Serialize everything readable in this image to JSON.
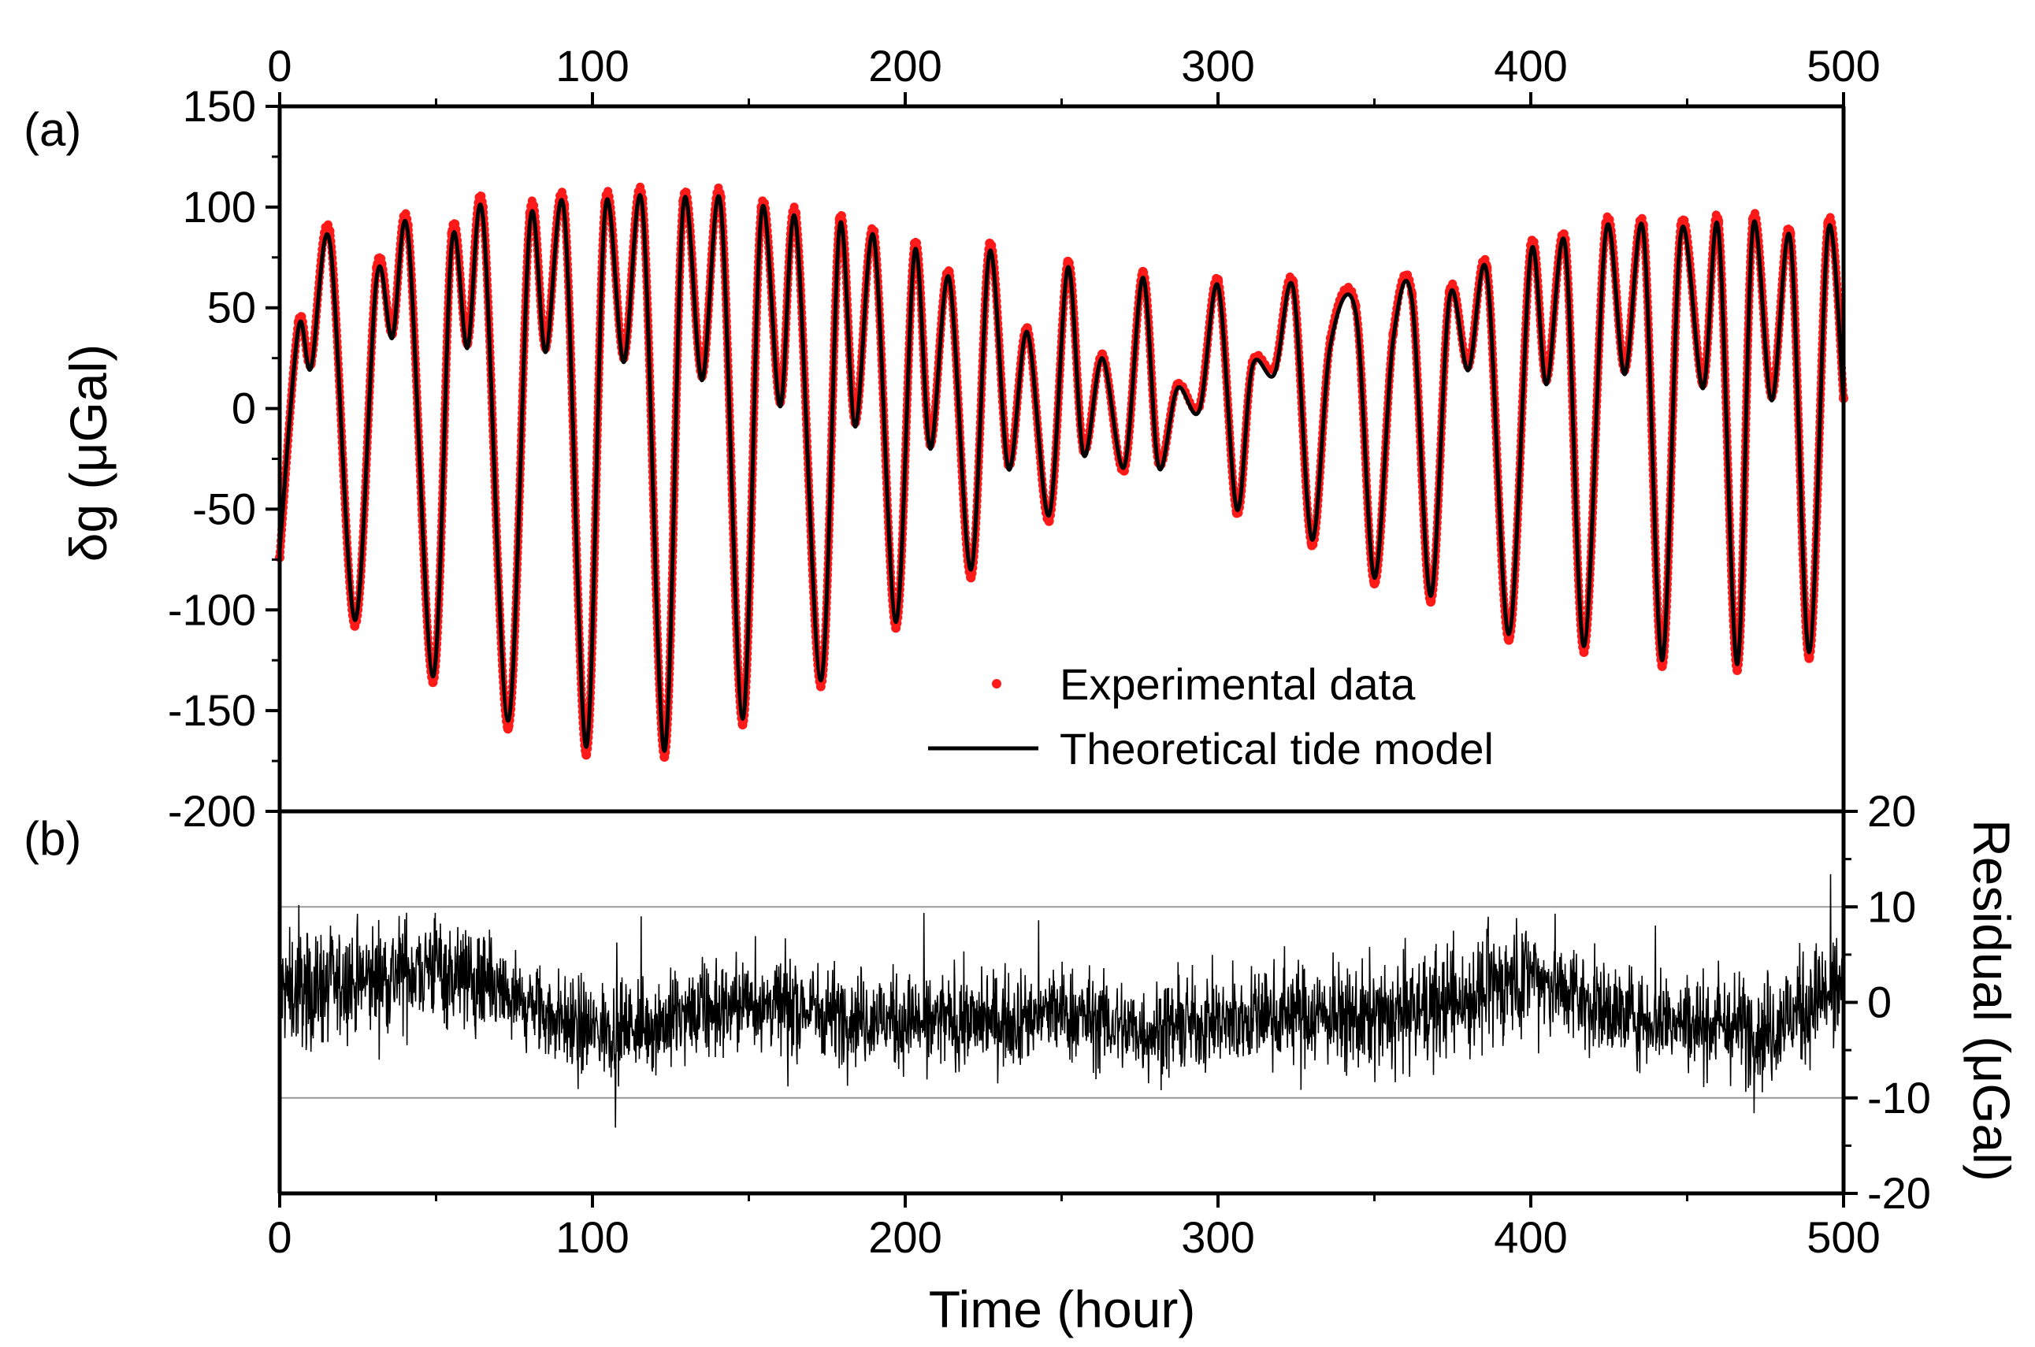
{
  "chart_data": [
    {
      "panel": "(a)",
      "type": "line",
      "title": "",
      "ylabel": "δg (μGal)",
      "xlabel_top": "",
      "ylim": [
        -200,
        150
      ],
      "yticks": [
        -200,
        -150,
        -100,
        -50,
        0,
        50,
        100,
        150
      ],
      "xlim": [
        0,
        500
      ],
      "xticks": [
        0,
        100,
        200,
        300,
        400,
        500
      ],
      "legend_position": "lower-right",
      "series": [
        {
          "name": "Experimental data",
          "style": "red dots",
          "color": "#ff1a1a",
          "x": [
            0,
            6,
            10,
            16,
            24,
            31,
            36,
            41,
            49,
            55,
            60,
            65,
            73,
            80,
            85,
            91,
            98,
            104,
            110,
            116,
            123,
            129,
            135,
            141,
            148,
            154,
            160,
            165,
            173,
            179,
            184,
            190,
            197,
            203,
            208,
            214,
            221,
            227,
            233,
            239,
            246,
            252,
            257,
            263,
            270,
            276,
            281,
            287,
            294,
            300,
            306,
            311,
            318,
            324,
            330,
            336,
            344,
            350,
            356,
            362,
            368,
            374,
            380,
            386,
            393,
            400,
            405,
            411,
            417,
            424,
            430,
            436,
            442,
            448,
            455,
            460,
            466,
            471,
            477,
            483,
            489,
            495,
            500
          ],
          "y": [
            -74,
            43,
            22,
            88,
            -108,
            70,
            37,
            91,
            -136,
            87,
            32,
            100,
            -159,
            97,
            30,
            101,
            -172,
            102,
            25,
            104,
            -173,
            103,
            16,
            105,
            -157,
            100,
            3,
            97,
            -138,
            94,
            -7,
            88,
            -109,
            82,
            -18,
            68,
            -84,
            82,
            -28,
            40,
            -56,
            73,
            -21,
            27,
            -31,
            68,
            -27,
            12,
            1,
            64,
            -52,
            23,
            20,
            63,
            -68,
            35,
            51,
            -87,
            37,
            57,
            -96,
            58,
            21,
            70,
            -115,
            81,
            14,
            84,
            -121,
            92,
            19,
            91,
            -128,
            91,
            12,
            93,
            -130,
            94,
            6,
            87,
            -124,
            92,
            5
          ]
        },
        {
          "name": "Theoretical tide model",
          "style": "black line",
          "color": "#000000",
          "x": [
            0,
            6,
            10,
            16,
            24,
            31,
            36,
            41,
            49,
            55,
            60,
            65,
            73,
            80,
            85,
            91,
            98,
            104,
            110,
            116,
            123,
            129,
            135,
            141,
            148,
            154,
            160,
            165,
            173,
            179,
            184,
            190,
            197,
            203,
            208,
            214,
            221,
            227,
            233,
            239,
            246,
            252,
            257,
            263,
            270,
            276,
            281,
            287,
            294,
            300,
            306,
            311,
            318,
            324,
            330,
            336,
            344,
            350,
            356,
            362,
            368,
            374,
            380,
            386,
            393,
            400,
            405,
            411,
            417,
            424,
            430,
            436,
            442,
            448,
            455,
            460,
            466,
            471,
            477,
            483,
            489,
            495,
            500
          ],
          "y": [
            -70,
            40,
            20,
            83,
            -105,
            65,
            35,
            87,
            -133,
            82,
            30,
            95,
            -155,
            92,
            28,
            97,
            -168,
            98,
            23,
            100,
            -170,
            100,
            14,
            101,
            -154,
            97,
            1,
            93,
            -135,
            90,
            -9,
            85,
            -106,
            78,
            -20,
            65,
            -80,
            78,
            -30,
            38,
            -53,
            70,
            -23,
            25,
            -29,
            65,
            -29,
            10,
            -1,
            61,
            -50,
            21,
            17,
            60,
            -65,
            32,
            48,
            -84,
            34,
            54,
            -93,
            55,
            19,
            67,
            -112,
            77,
            12,
            81,
            -118,
            88,
            17,
            88,
            -125,
            87,
            10,
            89,
            -127,
            90,
            4,
            84,
            -121,
            88,
            3
          ]
        }
      ]
    },
    {
      "panel": "(b)",
      "type": "line",
      "xlabel": "Time (hour)",
      "ylabel": "Residual (μGal)",
      "ylim": [
        -20,
        20
      ],
      "yticks": [
        -20,
        -10,
        0,
        10,
        20
      ],
      "xlim": [
        0,
        500
      ],
      "xticks": [
        0,
        100,
        200,
        300,
        400,
        500
      ],
      "reference_lines": [
        10,
        -10
      ],
      "series": [
        {
          "name": "Residual",
          "style": "black noisy line",
          "color": "#000000",
          "x": [
            0,
            25,
            50,
            75,
            100,
            125,
            150,
            175,
            200,
            225,
            250,
            275,
            300,
            325,
            350,
            375,
            400,
            425,
            450,
            475,
            500
          ],
          "y": [
            1,
            2,
            4,
            0,
            -3,
            -2,
            0,
            -1,
            -2,
            -2,
            -1,
            -3,
            -2,
            -1,
            -2,
            0,
            3,
            -1,
            -2,
            -3,
            2
          ],
          "spread": [
            3,
            3,
            3,
            2.5,
            2.5,
            2.5,
            2.5,
            2.5,
            2.5,
            2.5,
            2.5,
            2.5,
            2.5,
            2.5,
            3,
            3,
            3,
            2.5,
            2.5,
            3,
            3
          ]
        }
      ]
    }
  ],
  "legend": {
    "experimental": "Experimental data",
    "theory": "Theoretical tide model"
  },
  "labels": {
    "panel_a": "(a)",
    "panel_b": "(b)",
    "ylabel_a": "δg (μGal)",
    "ylabel_b": "Residual (μGal)",
    "xlabel": "Time (hour)"
  }
}
